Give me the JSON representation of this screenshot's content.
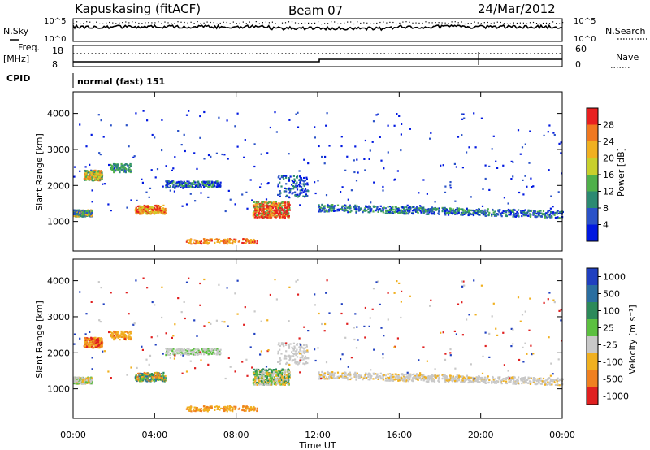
{
  "header": {
    "station": "Kapuskasing (fitACF)",
    "beam": "Beam 07",
    "date": "24/Mar/2012"
  },
  "strip_labels": {
    "nsky": "N.Sky",
    "nsky_ticks": [
      "10^5",
      "10^0"
    ],
    "nsearch": "N.Search",
    "nsearch_ticks": [
      "10^5",
      "10^0"
    ],
    "freq": "Freq.",
    "freq_unit": "[MHz]",
    "freq_ticks": [
      "18",
      "8"
    ],
    "nave": "Nave",
    "nave_ticks": [
      "60",
      "0"
    ],
    "cpid": "CPID",
    "cpid_value": "normal (fast) 151"
  },
  "chart_data": [
    {
      "type": "heatmap",
      "name": "power",
      "ylabel": "Slant Range [km]",
      "ylim": [
        180,
        4600
      ],
      "yticks": [
        "1000",
        "2000",
        "3000",
        "4000"
      ],
      "colorbar_label": "Power [dB]",
      "colorbar_ticks": [
        "4",
        "8",
        "12",
        "16",
        "20",
        "24",
        "28"
      ],
      "colorscale": [
        "#0018e0",
        "#2a52c8",
        "#2c8a72",
        "#4fb04a",
        "#c8d02c",
        "#f0b020",
        "#f07820",
        "#e82020"
      ]
    },
    {
      "type": "heatmap",
      "name": "velocity",
      "ylabel": "Slant Range [km]",
      "ylim": [
        180,
        4600
      ],
      "yticks": [
        "1000",
        "2000",
        "3000",
        "4000"
      ],
      "colorbar_label": "Velocity [m s⁻¹]",
      "colorbar_ticks": [
        "1000",
        "500",
        "100",
        "25",
        "-25",
        "-100",
        "-500",
        "-1000"
      ],
      "colorscale": [
        "#2040c0",
        "#2a6ea0",
        "#2c8a5a",
        "#5cc040",
        "#c8c8c8",
        "#f0b020",
        "#f08020",
        "#e02020"
      ]
    }
  ],
  "xaxis": {
    "label": "Time UT",
    "ticks": [
      "00:00",
      "04:00",
      "08:00",
      "12:00",
      "16:00",
      "20:00",
      "00:00"
    ]
  }
}
